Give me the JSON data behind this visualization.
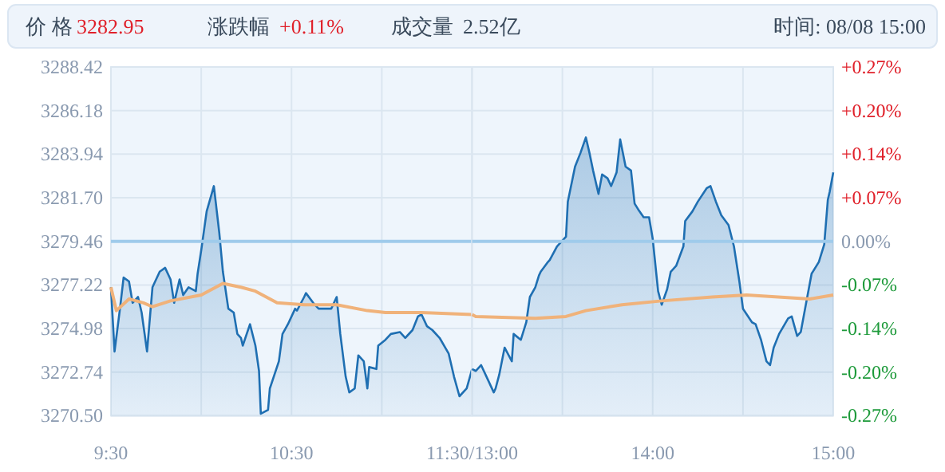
{
  "chart_data": [
    {
      "type": "area",
      "annotations": [
        "价 格",
        "3282.95",
        "涨跌幅",
        "+0.11%",
        "成交量",
        "2.52亿",
        "时间: 08/08 15:00"
      ],
      "xlim": [
        9.5,
        11.5
      ],
      "xticks": [
        {
          "value": 9.5,
          "label": "9:30"
        },
        {
          "value": 10,
          "label": null
        },
        {
          "value": 10.5,
          "label": "10:30"
        },
        {
          "value": 11,
          "label": null
        },
        {
          "value": 11.5,
          "label": "11:30/13:00"
        }
      ],
      "ylim": [
        3270.5,
        3288.42
      ],
      "yticks": [
        {
          "value": 3270.5,
          "label": "3270.50"
        },
        3272.74,
        3274.98,
        3277.22,
        3279.46,
        {
          "value": 3281.7,
          "label": "3281.70"
        },
        3283.94,
        3286.18,
        3288.42
      ],
      "grid": true,
      "ref_lines": [
        {
          "axis": "y",
          "value": 3279.46,
          "color": "#9fcbeb"
        }
      ],
      "series": [
        {
          "color": "#1f6fb2",
          "x": [
            9.5,
            9.52,
            9.55,
            9.57,
            9.6,
            9.62,
            9.65,
            9.67,
            9.7,
            9.73,
            9.77,
            9.8,
            9.83,
            9.85,
            9.88,
            9.9,
            9.93,
            9.97,
            9.98,
            10.0,
            10.03,
            10.07,
            10.08,
            10.1,
            10.12,
            10.15,
            10.18,
            10.2,
            10.22,
            10.23,
            10.27,
            10.3,
            10.32,
            10.33,
            10.37,
            10.38,
            10.43,
            10.45,
            10.48,
            10.52,
            10.53,
            10.57,
            10.58,
            10.62,
            10.65,
            10.72,
            10.75,
            10.77,
            10.8,
            10.82,
            10.85,
            10.87,
            10.9,
            10.92,
            10.93,
            10.97,
            10.98,
            11.02,
            11.05,
            11.1,
            11.13,
            11.17,
            11.2,
            11.22,
            11.25,
            11.28,
            11.32,
            11.37,
            11.4,
            11.43,
            11.47,
            11.5
          ],
          "values": [
            3277.1,
            3273.8,
            3276.0,
            3277.6,
            3277.4,
            3276.3,
            3276.6,
            3275.8,
            3273.8,
            3277.1,
            3277.9,
            3278.1,
            3277.5,
            3276.3,
            3277.5,
            3276.7,
            3277.1,
            3276.9,
            3277.8,
            3279.0,
            3281.0,
            3282.3,
            3281.5,
            3279.9,
            3277.9,
            3276.0,
            3275.8,
            3274.7,
            3274.5,
            3274.1,
            3275.2,
            3274.1,
            3272.8,
            3270.6,
            3270.8,
            3271.9,
            3273.3,
            3274.7,
            3275.2,
            3276.0,
            3275.9,
            3276.6,
            3276.8,
            3276.3,
            3276.0,
            3276.0,
            3276.6,
            3274.7,
            3272.5,
            3271.7,
            3271.9,
            3273.6,
            3273.3,
            3271.9,
            3273.0,
            3272.9,
            3274.1,
            3274.4,
            3274.7,
            3274.8,
            3274.5,
            3274.9,
            3275.6,
            3275.7,
            3275.1,
            3274.9,
            3274.5,
            3273.7,
            3272.5,
            3271.5,
            3271.9,
            3272.9
          ]
        },
        {
          "type": "line",
          "color": "#f0b27a",
          "x": [
            9.5,
            9.53,
            9.6,
            9.68,
            9.73,
            9.83,
            10.0,
            10.12,
            10.22,
            10.3,
            10.42,
            10.57,
            10.75,
            10.92,
            11.02,
            11.22,
            11.5
          ],
          "values": [
            3277.1,
            3275.9,
            3276.5,
            3276.3,
            3276.1,
            3276.4,
            3276.7,
            3277.3,
            3277.1,
            3276.9,
            3276.3,
            3276.2,
            3276.2,
            3275.9,
            3275.8,
            3275.8,
            3275.7
          ]
        }
      ]
    },
    {
      "type": "area",
      "xlim": [
        13,
        15
      ],
      "xticks": [
        {
          "value": 13,
          "label": null
        },
        {
          "value": 13.5,
          "label": null
        },
        {
          "value": 14,
          "label": "14:00"
        },
        {
          "value": 14.5,
          "label": null
        },
        {
          "value": 15,
          "label": "15:00"
        }
      ],
      "ylim": [
        3270.5,
        3288.42
      ],
      "y2lim": [
        -0.2732,
        0.2732
      ],
      "y2ticks": [
        {
          "value": -0.2732,
          "label": "-0.27%"
        },
        {
          "value": -0.2049,
          "label": "-0.20%"
        },
        {
          "value": -0.1366,
          "label": "-0.14%"
        },
        {
          "value": -0.0683,
          "label": "-0.07%"
        },
        {
          "value": 0,
          "label": "0.00%"
        },
        {
          "value": 0.0683,
          "label": "+0.07%"
        },
        {
          "value": 0.1366,
          "label": "+0.14%"
        },
        {
          "value": 0.2049,
          "label": "+0.20%"
        },
        {
          "value": 0.2732,
          "label": "+0.27%"
        }
      ],
      "tick_labels": "x",
      "grid": true,
      "ref_lines": [
        {
          "axis": "y",
          "value": 3279.46,
          "color": "#9fcbeb"
        }
      ],
      "series": [
        {
          "color": "#1f6fb2",
          "x": [
            13.0,
            13.02,
            13.05,
            13.08,
            13.12,
            13.13,
            13.15,
            13.18,
            13.22,
            13.23,
            13.27,
            13.3,
            13.32,
            13.35,
            13.37,
            13.38,
            13.42,
            13.43,
            13.47,
            13.52,
            13.53,
            13.57,
            13.6,
            13.63,
            13.65,
            13.67,
            13.7,
            13.72,
            13.75,
            13.77,
            13.8,
            13.82,
            13.85,
            13.88,
            13.9,
            13.92,
            13.95,
            13.98,
            14.0,
            14.03,
            14.05,
            14.08,
            14.1,
            14.13,
            14.17,
            14.18,
            14.22,
            14.25,
            14.3,
            14.32,
            14.35,
            14.38,
            14.42,
            14.45,
            14.48,
            14.5,
            14.55,
            14.57,
            14.6,
            14.63,
            14.65,
            14.67,
            14.7,
            14.75,
            14.77,
            14.8,
            14.82,
            14.85,
            14.88,
            14.92,
            14.95,
            14.97,
            14.98,
            15.0
          ],
          "values": [
            3272.9,
            3272.8,
            3273.1,
            3272.5,
            3271.7,
            3271.9,
            3272.6,
            3274.0,
            3273.3,
            3274.7,
            3274.4,
            3275.3,
            3276.6,
            3277.1,
            3277.7,
            3277.9,
            3278.4,
            3278.5,
            3279.2,
            3279.7,
            3281.5,
            3283.3,
            3284.0,
            3284.8,
            3284.0,
            3283.1,
            3281.9,
            3282.9,
            3282.7,
            3282.3,
            3283.0,
            3284.7,
            3283.3,
            3283.1,
            3281.4,
            3281.1,
            3280.7,
            3280.7,
            3279.6,
            3276.9,
            3276.2,
            3277.0,
            3277.9,
            3278.2,
            3279.2,
            3280.5,
            3281.0,
            3281.5,
            3282.2,
            3282.3,
            3281.5,
            3280.8,
            3280.3,
            3279.2,
            3277.4,
            3276.0,
            3275.3,
            3275.2,
            3274.4,
            3273.3,
            3273.1,
            3274.0,
            3274.7,
            3275.5,
            3275.6,
            3274.6,
            3274.8,
            3276.3,
            3277.8,
            3278.4,
            3279.3,
            3281.6,
            3282.0,
            3283.0
          ]
        },
        {
          "type": "line",
          "color": "#f0b27a",
          "x": [
            13.0,
            13.02,
            13.35,
            13.52,
            13.63,
            13.83,
            14.05,
            14.33,
            14.52,
            14.87,
            15.0
          ],
          "values": [
            3275.7,
            3275.6,
            3275.5,
            3275.6,
            3275.9,
            3276.2,
            3276.4,
            3276.6,
            3276.7,
            3276.5,
            3276.7
          ]
        }
      ]
    }
  ]
}
